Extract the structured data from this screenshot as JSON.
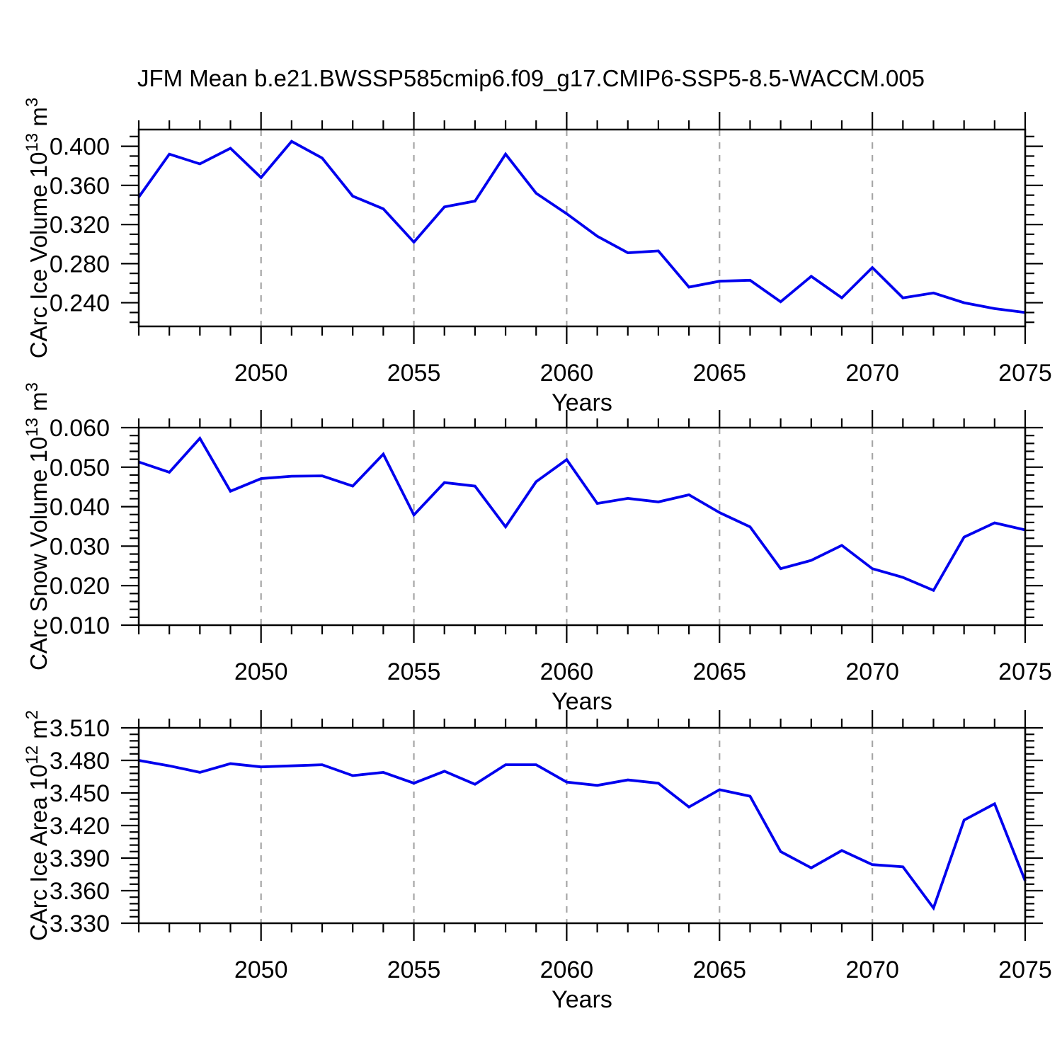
{
  "title": "JFM Mean b.e21.BWSSP585cmip6.f09_g17.CMIP6-SSP5-8.5-WACCM.005",
  "style": {
    "line_color": "#0000ee",
    "grid_color": "#a6a6a6",
    "axis_color": "#000000",
    "background": "#ffffff"
  },
  "chart_data": {
    "type": "line",
    "title": "JFM Mean b.e21.BWSSP585cmip6.f09_g17.CMIP6-SSP5-8.5-WACCM.005",
    "grid": "vertical-dashed-at-major-x-ticks",
    "legend": "none",
    "x_axis": {
      "label": "Years",
      "range": [
        2046,
        2075
      ],
      "major_ticks": [
        2050,
        2055,
        2060,
        2065,
        2070,
        2075
      ],
      "minor_step": 1
    },
    "x": [
      2046,
      2047,
      2048,
      2049,
      2050,
      2051,
      2052,
      2053,
      2054,
      2055,
      2056,
      2057,
      2058,
      2059,
      2060,
      2061,
      2062,
      2063,
      2064,
      2065,
      2066,
      2067,
      2068,
      2069,
      2070,
      2071,
      2072,
      2073,
      2074,
      2075
    ],
    "panels": [
      {
        "id": "ice-volume",
        "ylabel_plain": "CArc Ice Volume 10^13 m^3",
        "ylabel_segments": [
          [
            "t",
            "CArc Ice Volume 10"
          ],
          [
            "s",
            "13"
          ],
          [
            "t",
            " m"
          ],
          [
            "s",
            "3"
          ]
        ],
        "yrange": [
          0.2158,
          0.4171
        ],
        "yticks": [
          0.24,
          0.28,
          0.32,
          0.36,
          0.4
        ],
        "yminor_step": 0.01,
        "ytick_decimals": 3,
        "values": [
          0.348,
          0.392,
          0.382,
          0.398,
          0.368,
          0.405,
          0.388,
          0.349,
          0.336,
          0.302,
          0.338,
          0.344,
          0.392,
          0.352,
          0.331,
          0.308,
          0.291,
          0.293,
          0.256,
          0.262,
          0.263,
          0.241,
          0.267,
          0.245,
          0.276,
          0.245,
          0.25,
          0.24,
          0.234,
          0.23
        ]
      },
      {
        "id": "snow-volume",
        "ylabel_plain": "CArc Snow Volume 10^13 m^3",
        "ylabel_segments": [
          [
            "t",
            "CArc Snow Volume 10"
          ],
          [
            "s",
            "13"
          ],
          [
            "t",
            " m"
          ],
          [
            "s",
            "3"
          ]
        ],
        "yrange": [
          0.01,
          0.06
        ],
        "yticks": [
          0.01,
          0.02,
          0.03,
          0.04,
          0.05,
          0.06
        ],
        "yminor_step": 0.002,
        "ytick_decimals": 3,
        "values": [
          0.0513,
          0.0487,
          0.0573,
          0.0439,
          0.0471,
          0.0477,
          0.0478,
          0.0452,
          0.0533,
          0.0379,
          0.0461,
          0.0452,
          0.0349,
          0.0463,
          0.0519,
          0.0408,
          0.0421,
          0.0412,
          0.043,
          0.0385,
          0.0349,
          0.0243,
          0.0264,
          0.0302,
          0.0243,
          0.0221,
          0.0188,
          0.0323,
          0.0359,
          0.0341
        ]
      },
      {
        "id": "ice-area",
        "ylabel_plain": "CArc Ice Area 10^12 m^2",
        "ylabel_segments": [
          [
            "t",
            "CArc Ice Area 10"
          ],
          [
            "s",
            "12"
          ],
          [
            "t",
            " m"
          ],
          [
            "s",
            "2"
          ]
        ],
        "yrange": [
          3.33,
          3.51
        ],
        "yticks": [
          3.33,
          3.36,
          3.39,
          3.42,
          3.45,
          3.48,
          3.51
        ],
        "yminor_step": 0.006,
        "ytick_decimals": 3,
        "values": [
          3.48,
          3.475,
          3.469,
          3.477,
          3.474,
          3.475,
          3.476,
          3.466,
          3.469,
          3.459,
          3.47,
          3.458,
          3.476,
          3.476,
          3.46,
          3.457,
          3.462,
          3.459,
          3.437,
          3.453,
          3.447,
          3.396,
          3.381,
          3.397,
          3.384,
          3.382,
          3.344,
          3.425,
          3.44,
          3.369
        ]
      }
    ]
  }
}
